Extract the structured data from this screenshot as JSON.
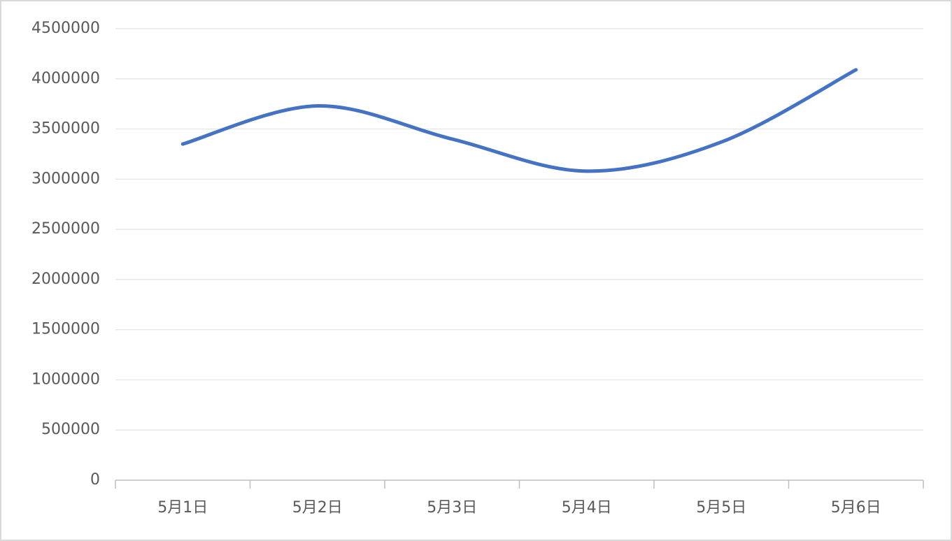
{
  "chart_data": {
    "type": "line",
    "smooth": true,
    "categories": [
      "5月1日",
      "5月2日",
      "5月3日",
      "5月4日",
      "5月5日",
      "5月6日"
    ],
    "values": [
      3350000,
      3730000,
      3400000,
      3080000,
      3370000,
      4090000
    ],
    "color": "#4472c4",
    "ylim": [
      0,
      4500000
    ],
    "yticks": [
      0,
      500000,
      1000000,
      1500000,
      2000000,
      2500000,
      3000000,
      3500000,
      4000000,
      4500000
    ],
    "grid": true
  }
}
